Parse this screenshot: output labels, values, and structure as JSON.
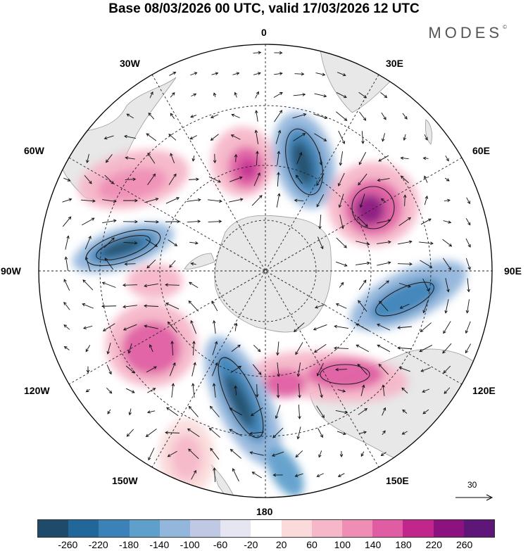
{
  "title": "Base 08/03/2026 00 UTC, valid 17/03/2026 12 UTC",
  "brand": "MODES",
  "brand_mark": "©",
  "longitude_labels": {
    "lon_0": "0",
    "lon_30e": "30E",
    "lon_60e": "60E",
    "lon_90e": "90E",
    "lon_120e": "120E",
    "lon_150e": "150E",
    "lon_180": "180",
    "lon_150w": "150W",
    "lon_120w": "120W",
    "lon_90w": "90W",
    "lon_60w": "60W",
    "lon_30w": "30W"
  },
  "reference_vector": {
    "label": "30"
  },
  "colorbar": {
    "ticks": [
      "-260",
      "-220",
      "-180",
      "-140",
      "-100",
      "-60",
      "-20",
      "20",
      "60",
      "100",
      "140",
      "180",
      "220",
      "260"
    ],
    "colors": [
      "#1f4b6b",
      "#22679a",
      "#3b82b8",
      "#5f9fcc",
      "#93b6dc",
      "#bfc9e4",
      "#e6e6f2",
      "#ffffff",
      "#fadada",
      "#f6b7c9",
      "#f08db5",
      "#e05da3",
      "#c0268c",
      "#8c127f",
      "#5e1679"
    ]
  },
  "colors": {
    "land": "#e8e8e8",
    "coast": "#9a9a9a"
  }
}
